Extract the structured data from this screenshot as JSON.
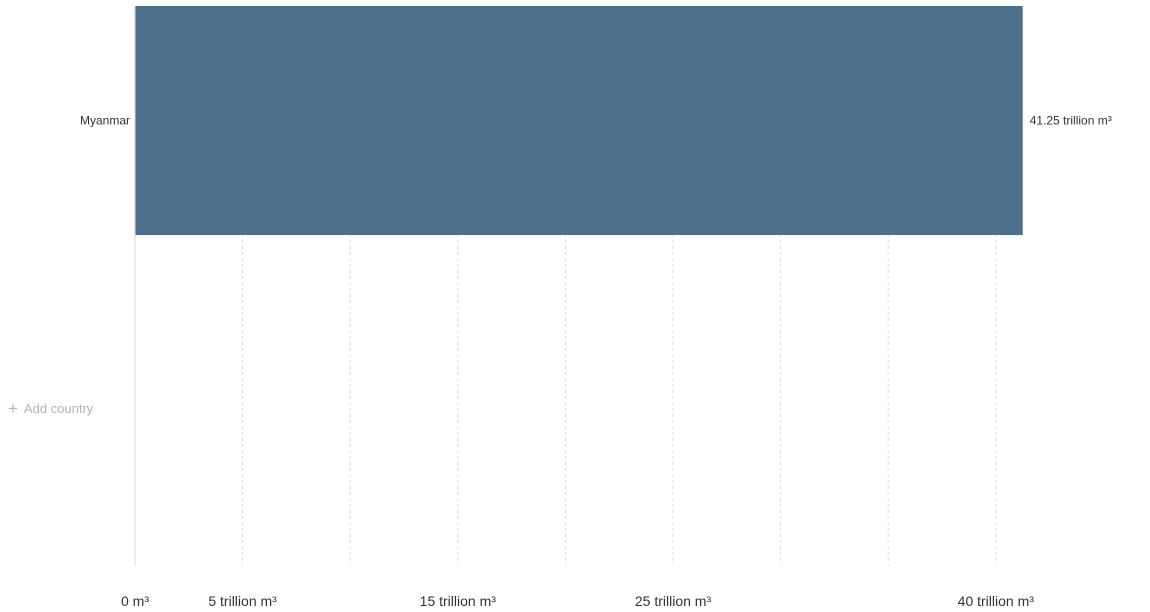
{
  "chart_data": {
    "type": "bar",
    "orientation": "horizontal",
    "categories": [
      "Myanmar"
    ],
    "values": [
      41.25
    ],
    "value_labels": [
      "41.25 trillion m³"
    ],
    "unit": "trillion m³",
    "xlim": [
      0,
      45
    ],
    "x_ticks": [
      0,
      5,
      15,
      25,
      40
    ],
    "x_tick_labels": [
      "0 m³",
      "5 trillion m³",
      "15 trillion m³",
      "25 trillion m³",
      "40 trillion m³"
    ],
    "gridlines": [
      5,
      10,
      15,
      20,
      25,
      30,
      35,
      40
    ],
    "grid": true,
    "bar_color": "#4c6f8c",
    "title": "",
    "xlabel": "",
    "ylabel": ""
  },
  "controls": {
    "add_country_label": "Add country",
    "add_icon": "plus-icon"
  }
}
